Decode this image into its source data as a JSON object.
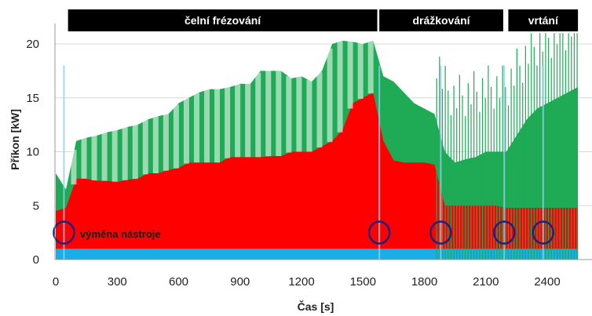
{
  "chart_data": {
    "type": "area",
    "title": "",
    "xlabel": "Čas [s]",
    "ylabel": "Příkon [kW]",
    "xlim": [
      0,
      2550
    ],
    "ylim": [
      0,
      22
    ],
    "xticks": [
      0,
      300,
      600,
      900,
      1200,
      1500,
      1800,
      2100,
      2400
    ],
    "xtick_labels": [
      "0",
      "300",
      "600",
      "900",
      "1200",
      "1500",
      "1800",
      "2100",
      "2400"
    ],
    "yticks": [
      0,
      5,
      10,
      15,
      20
    ],
    "ytick_labels": [
      "0",
      "5",
      "10",
      "15",
      "20"
    ],
    "grid": "horizontal",
    "phases": [
      {
        "label": "čelní frézování",
        "x_start": 60,
        "x_end": 1570
      },
      {
        "label": "drážkování",
        "x_start": 1580,
        "x_end": 2185
      },
      {
        "label": "vrtání",
        "x_start": 2210,
        "x_end": 2550
      }
    ],
    "annotation": "výměna nástroje",
    "tool_change_times": [
      40,
      1580,
      1880,
      2190,
      2380
    ],
    "colors": {
      "base": "#1aaee6",
      "red": "#ff0000",
      "green": "#1faa55",
      "circle": "#1a237e",
      "phase_bar": "#000000"
    },
    "series": [
      {
        "name": "",
        "color": "#1aaee6",
        "x": [
          0,
          2550
        ],
        "values": [
          1.0,
          1.0
        ]
      },
      {
        "name": "",
        "color": "#ff0000",
        "x": [
          0,
          50,
          100,
          150,
          200,
          250,
          300,
          350,
          400,
          450,
          500,
          550,
          600,
          650,
          700,
          750,
          800,
          850,
          900,
          950,
          1000,
          1050,
          1100,
          1150,
          1200,
          1250,
          1300,
          1350,
          1400,
          1450,
          1500,
          1550,
          1600,
          1650,
          1700,
          1750,
          1800,
          1850,
          1900,
          1950,
          2000,
          2050,
          2100,
          2150,
          2200,
          2250,
          2300,
          2350,
          2400,
          2450,
          2500,
          2550
        ],
        "values": [
          4.5,
          4.8,
          7.5,
          7.5,
          7.3,
          7.3,
          7.2,
          7.4,
          7.5,
          8.0,
          8.0,
          8.3,
          8.5,
          9.0,
          9.0,
          9.0,
          9.0,
          9.5,
          9.5,
          9.5,
          9.5,
          9.6,
          9.6,
          10.0,
          10.0,
          10.0,
          10.5,
          11.0,
          12.0,
          14.5,
          15.0,
          15.5,
          11.0,
          9.2,
          9.0,
          9.0,
          9.0,
          8.8,
          5.0,
          5.0,
          5.0,
          5.0,
          5.0,
          5.0,
          4.8,
          4.8,
          4.8,
          4.8,
          4.8,
          4.8,
          4.8,
          4.8
        ]
      },
      {
        "name": "",
        "color": "#1faa55",
        "x": [
          0,
          50,
          100,
          150,
          200,
          250,
          300,
          350,
          400,
          450,
          500,
          550,
          600,
          650,
          700,
          750,
          800,
          850,
          900,
          950,
          1000,
          1050,
          1100,
          1150,
          1200,
          1250,
          1300,
          1350,
          1400,
          1450,
          1500,
          1550,
          1600,
          1650,
          1700,
          1750,
          1800,
          1850,
          1900,
          1950,
          2000,
          2050,
          2100,
          2150,
          2200,
          2250,
          2300,
          2350,
          2400,
          2450,
          2500,
          2550
        ],
        "values": [
          8.0,
          6.5,
          11.0,
          11.3,
          11.5,
          11.8,
          12.0,
          12.3,
          12.5,
          13.0,
          13.3,
          13.5,
          14.5,
          15.0,
          15.5,
          15.8,
          15.8,
          16.0,
          16.3,
          16.3,
          17.5,
          17.5,
          17.5,
          16.8,
          17.0,
          16.5,
          17.5,
          20.0,
          20.3,
          20.2,
          20.0,
          20.3,
          17.0,
          16.5,
          15.5,
          14.5,
          14.0,
          13.5,
          10.0,
          9.0,
          9.3,
          9.5,
          10.0,
          10.0,
          10.0,
          11.5,
          13.0,
          14.0,
          14.5,
          15.0,
          15.5,
          16.0
        ]
      }
    ]
  }
}
